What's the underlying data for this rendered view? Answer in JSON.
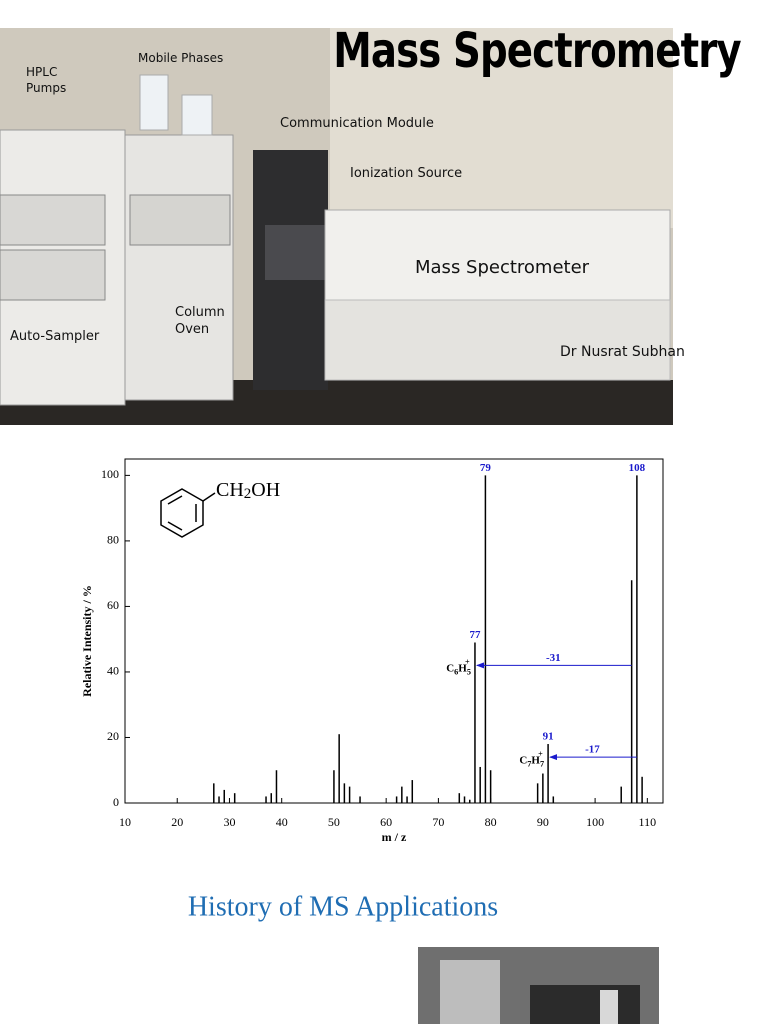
{
  "photo": {
    "title": "Mass Spectrometry",
    "labels": [
      "HPLC\nPumps",
      "Mobile Phases",
      "Communication Module",
      "Ionization Source",
      "Mass Spectrometer",
      "Auto-Sampler",
      "Column\nOven",
      "Dr Nusrat Subhan"
    ]
  },
  "chart_data": {
    "type": "bar",
    "x_label": "m / z",
    "y_label": "Relative Intensity / %",
    "x": [
      27,
      28,
      29,
      31,
      37,
      38,
      39,
      50,
      51,
      52,
      53,
      55,
      62,
      63,
      64,
      65,
      74,
      75,
      76,
      77,
      78,
      79,
      80,
      89,
      90,
      91,
      92,
      105,
      107,
      108,
      109
    ],
    "values": [
      6,
      2,
      4,
      3,
      2,
      3,
      10,
      10,
      21,
      6,
      5,
      2,
      2,
      5,
      2,
      7,
      3,
      2,
      1,
      49,
      11,
      100,
      10,
      6,
      9,
      18,
      2,
      5,
      68,
      100,
      8
    ],
    "color": "#000000",
    "xlim": [
      10,
      113
    ],
    "ylim": [
      0,
      105
    ],
    "xticks": [
      10,
      20,
      30,
      40,
      50,
      60,
      70,
      80,
      90,
      100,
      110
    ],
    "yticks": [
      0,
      20,
      40,
      60,
      80,
      100
    ],
    "peak_labels": [
      {
        "text": "79",
        "x": 79,
        "y": 100
      },
      {
        "text": "108",
        "x": 108,
        "y": 100
      },
      {
        "text": "77",
        "x": 77,
        "y": 49
      },
      {
        "text": "91",
        "x": 91,
        "y": 18
      }
    ],
    "arrows": [
      {
        "label": "-31",
        "from": 107,
        "to": 77,
        "y": 42
      },
      {
        "label": "-17",
        "from": 108,
        "to": 91,
        "y": 14
      }
    ],
    "formulas": [
      {
        "x": 77,
        "y": 41,
        "parts": [
          [
            "C",
            "n"
          ],
          [
            "6",
            "sub"
          ],
          [
            "H",
            "n"
          ],
          [
            "5",
            "sub"
          ],
          [
            "+",
            "sup"
          ]
        ]
      },
      {
        "x": 91,
        "y": 13,
        "parts": [
          [
            "C",
            "n"
          ],
          [
            "7",
            "sub"
          ],
          [
            "H",
            "n"
          ],
          [
            "7",
            "sub"
          ],
          [
            "+",
            "sup"
          ]
        ]
      }
    ],
    "molecule": [
      [
        "CH",
        "n"
      ],
      [
        "2",
        "sub"
      ],
      [
        "OH",
        "n"
      ]
    ]
  },
  "heading": "History of MS Applications"
}
